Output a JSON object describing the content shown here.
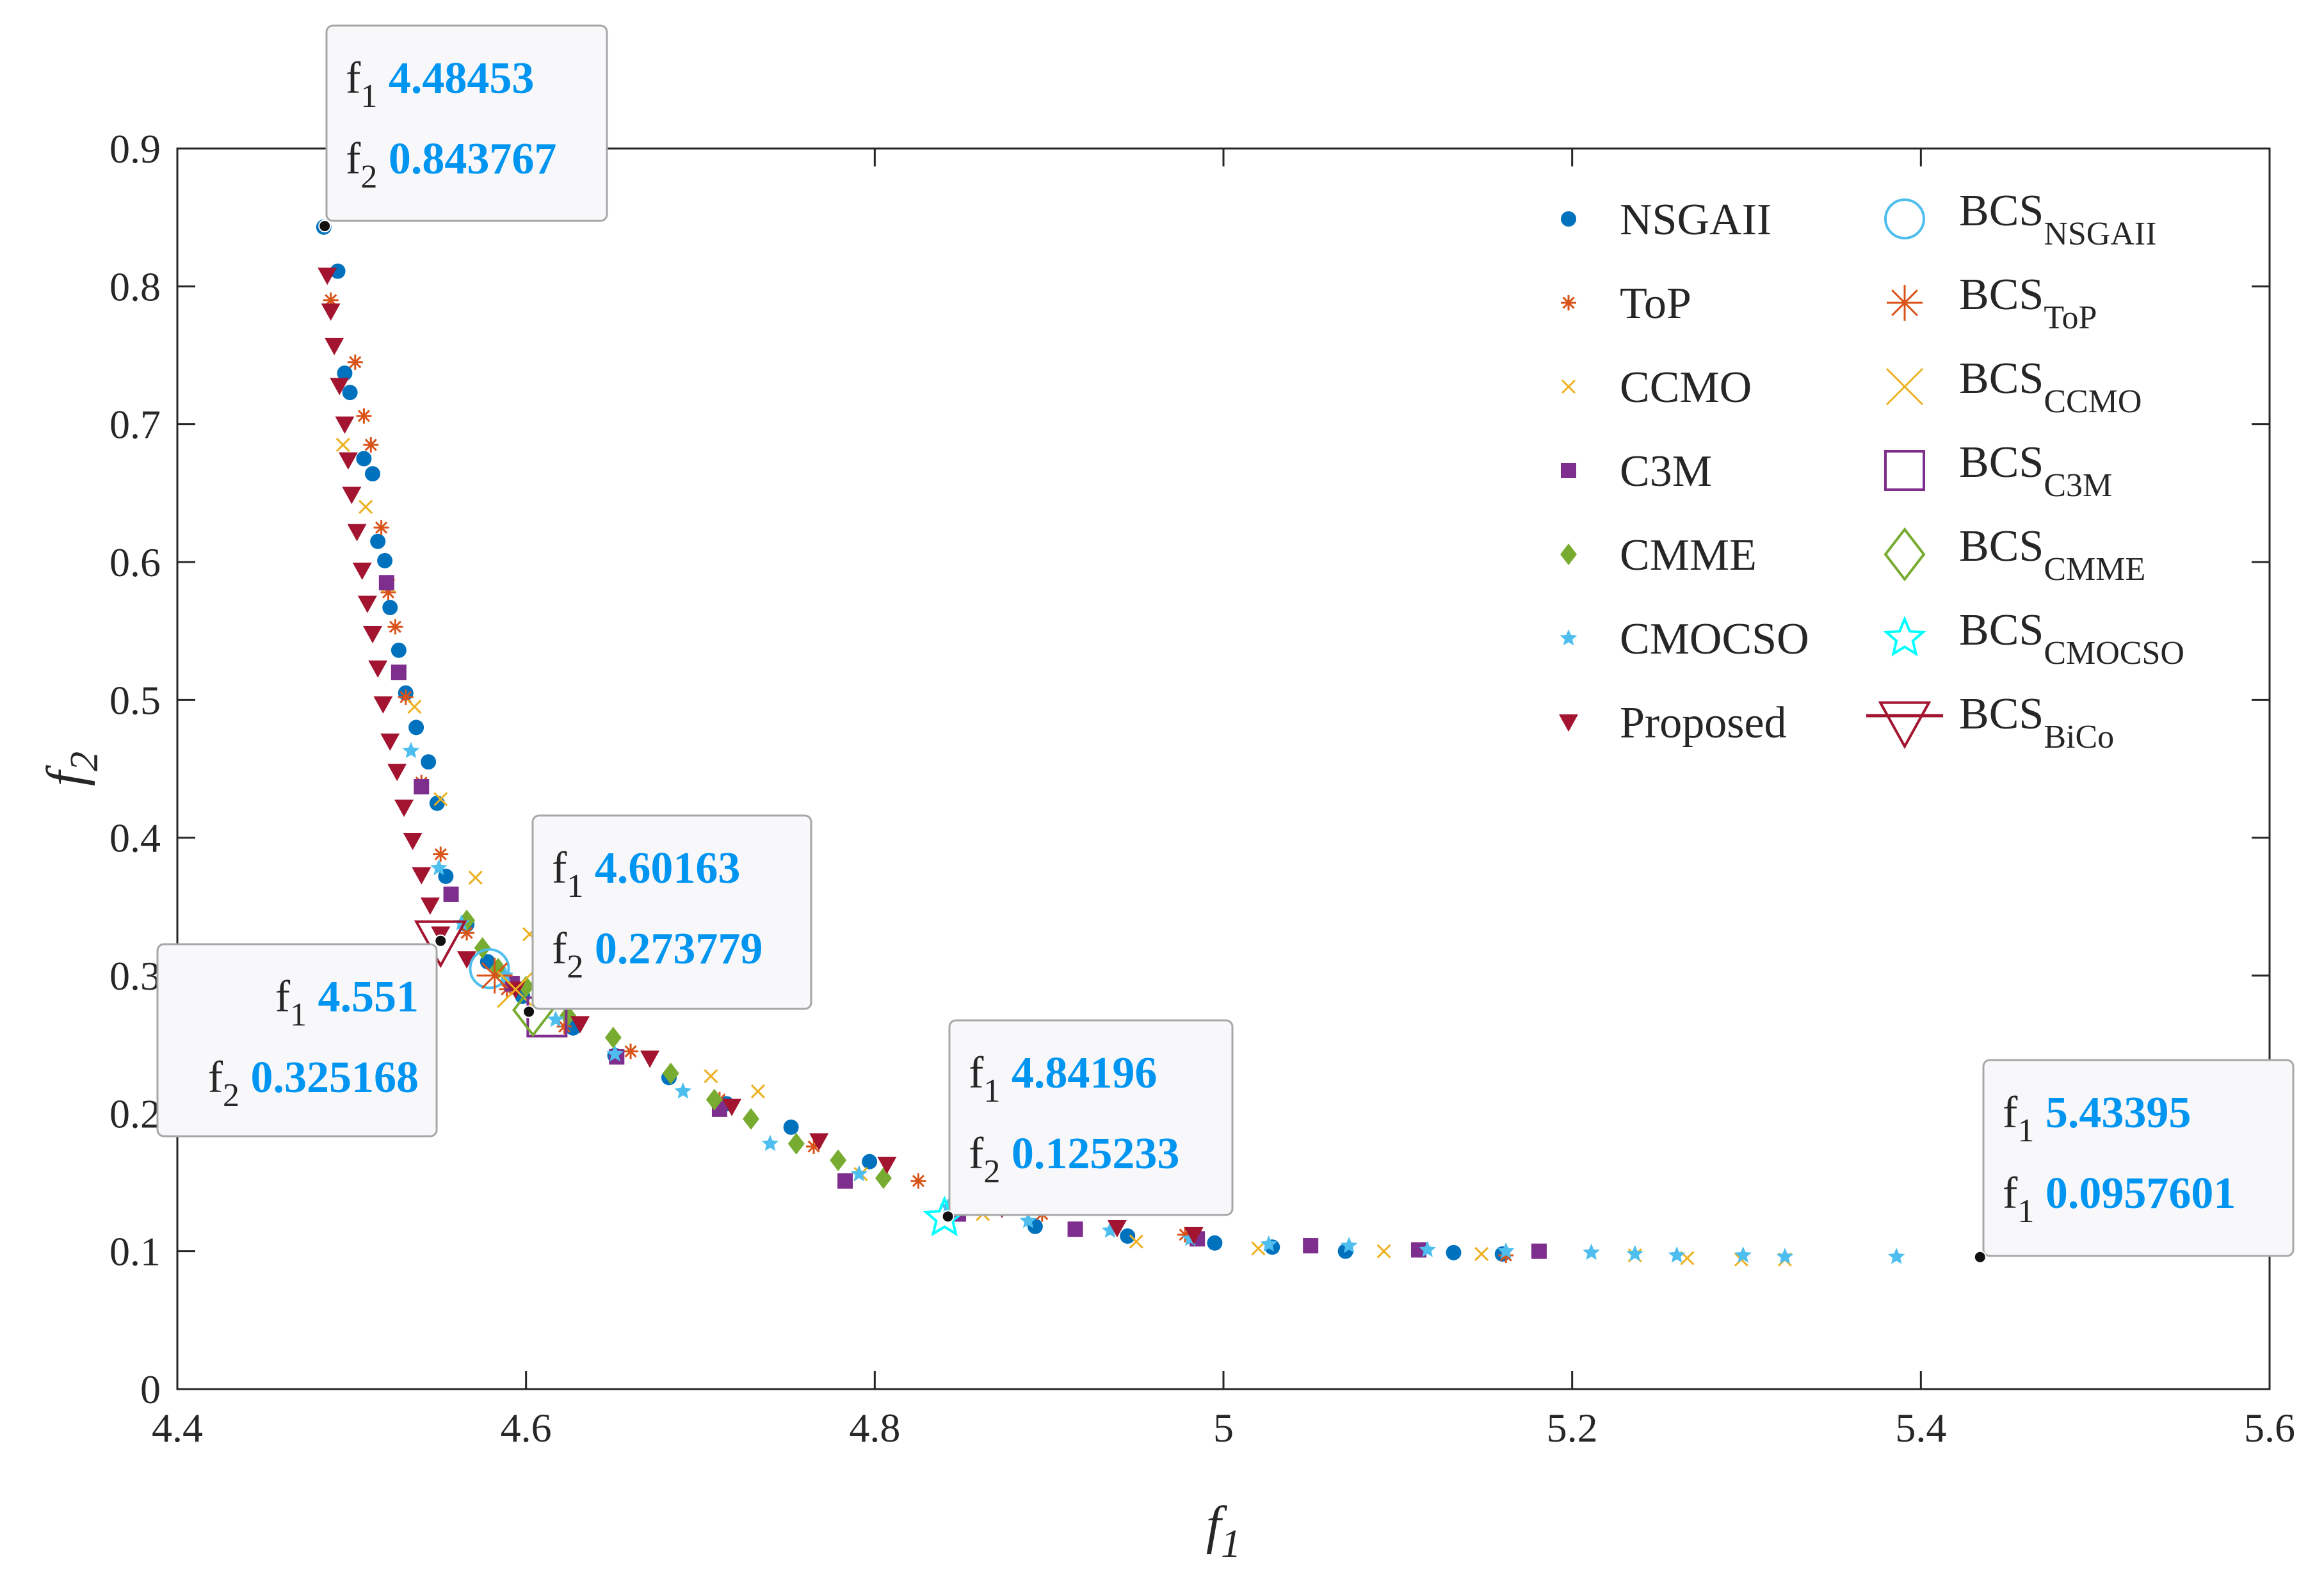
{
  "chart_data": {
    "type": "scatter",
    "title": "",
    "xlabel": "f",
    "xlabel_sub": "1",
    "ylabel": "f",
    "ylabel_sub": "2",
    "xlim": [
      4.4,
      5.6
    ],
    "ylim": [
      0,
      0.9
    ],
    "xticks": [
      4.4,
      4.6,
      4.8,
      5,
      5.2,
      5.4,
      5.6
    ],
    "xtick_labels": [
      "4.4",
      "4.6",
      "4.8",
      "5",
      "5.2",
      "5.4",
      "5.6"
    ],
    "yticks": [
      0,
      0.1,
      0.2,
      0.3,
      0.4,
      0.5,
      0.6,
      0.7,
      0.8,
      0.9
    ],
    "ytick_labels": [
      "0",
      "0.1",
      "0.2",
      "0.3",
      "0.4",
      "0.5",
      "0.6",
      "0.7",
      "0.8",
      "0.9"
    ],
    "grid": false,
    "legend_position": "top-right",
    "colors": {
      "NSGAII": "#0072BD",
      "ToP": "#D95319",
      "CCMO": "#EDB120",
      "C3M": "#7E2F8E",
      "CMME": "#77AC30",
      "CMOCSO": "#4DBEEE",
      "Proposed": "#A2142F",
      "BCS_NSGAII": "#4DBEEE",
      "BCS_CMOCSO": "#00FFFF",
      "datatip_value": "#0095F0"
    },
    "series": [
      {
        "name": "NSGAII",
        "marker": "circle",
        "x": [
          4.484,
          4.492,
          4.496,
          4.499,
          4.507,
          4.512,
          4.515,
          4.519,
          4.522,
          4.527,
          4.531,
          4.537,
          4.544,
          4.549,
          4.554,
          4.566,
          4.578,
          4.598,
          4.627,
          4.651,
          4.682,
          4.715,
          4.752,
          4.797,
          4.846,
          4.892,
          4.945,
          4.995,
          5.028,
          5.07,
          5.132,
          5.16
        ],
        "y": [
          0.843,
          0.811,
          0.737,
          0.723,
          0.675,
          0.664,
          0.615,
          0.601,
          0.567,
          0.536,
          0.505,
          0.48,
          0.455,
          0.425,
          0.372,
          0.337,
          0.31,
          0.285,
          0.262,
          0.242,
          0.226,
          0.207,
          0.19,
          0.165,
          0.132,
          0.118,
          0.111,
          0.106,
          0.103,
          0.1,
          0.099,
          0.098
        ]
      },
      {
        "name": "ToP",
        "marker": "asterisk",
        "x": [
          4.488,
          4.502,
          4.507,
          4.511,
          4.517,
          4.521,
          4.525,
          4.531,
          4.54,
          4.551,
          4.566,
          4.589,
          4.622,
          4.66,
          4.711,
          4.765,
          4.825,
          4.896,
          4.978,
          5.162
        ],
        "y": [
          0.79,
          0.745,
          0.706,
          0.685,
          0.625,
          0.578,
          0.553,
          0.502,
          0.44,
          0.388,
          0.331,
          0.29,
          0.263,
          0.245,
          0.21,
          0.176,
          0.151,
          0.127,
          0.112,
          0.097
        ]
      },
      {
        "name": "CCMO",
        "marker": "x",
        "x": [
          4.495,
          4.508,
          4.521,
          4.536,
          4.551,
          4.571,
          4.602,
          4.645,
          4.706,
          4.733,
          4.792,
          4.862,
          4.95,
          5.02,
          5.092,
          5.148,
          5.236,
          5.266,
          5.297,
          5.322
        ],
        "y": [
          0.685,
          0.64,
          0.583,
          0.495,
          0.428,
          0.371,
          0.33,
          0.282,
          0.227,
          0.216,
          0.156,
          0.127,
          0.107,
          0.102,
          0.1,
          0.098,
          0.097,
          0.095,
          0.094,
          0.094
        ]
      },
      {
        "name": "C3M",
        "marker": "square",
        "x": [
          4.52,
          4.527,
          4.54,
          4.557,
          4.592,
          4.652,
          4.711,
          4.783,
          4.848,
          4.915,
          4.985,
          5.05,
          5.112,
          5.181
        ],
        "y": [
          0.585,
          0.52,
          0.437,
          0.359,
          0.294,
          0.241,
          0.203,
          0.151,
          0.127,
          0.116,
          0.109,
          0.104,
          0.101,
          0.1
        ]
      },
      {
        "name": "CMME",
        "marker": "diamond",
        "x": [
          4.566,
          4.575,
          4.584,
          4.6,
          4.624,
          4.65,
          4.683,
          4.708,
          4.729,
          4.755,
          4.779,
          4.805
        ],
        "y": [
          0.34,
          0.32,
          0.305,
          0.292,
          0.271,
          0.255,
          0.229,
          0.21,
          0.196,
          0.178,
          0.166,
          0.153
        ]
      },
      {
        "name": "CMOCSO",
        "marker": "star",
        "x": [
          4.534,
          4.55,
          4.563,
          4.588,
          4.617,
          4.651,
          4.69,
          4.74,
          4.791,
          4.842,
          4.888,
          4.935,
          4.981,
          5.026,
          5.072,
          5.117,
          5.162,
          5.211,
          5.236,
          5.26,
          5.298,
          5.322,
          5.386
        ],
        "y": [
          0.463,
          0.378,
          0.338,
          0.3,
          0.268,
          0.243,
          0.216,
          0.178,
          0.156,
          0.132,
          0.122,
          0.115,
          0.109,
          0.105,
          0.104,
          0.101,
          0.1,
          0.099,
          0.098,
          0.097,
          0.097,
          0.096,
          0.096
        ]
      },
      {
        "name": "Proposed",
        "marker": "triangle-down",
        "x": [
          4.486,
          4.488,
          4.49,
          4.493,
          4.496,
          4.498,
          4.5,
          4.503,
          4.506,
          4.509,
          4.512,
          4.515,
          4.518,
          4.522,
          4.526,
          4.53,
          4.535,
          4.54,
          4.545,
          4.551,
          4.566,
          4.594,
          4.631,
          4.671,
          4.718,
          4.768,
          4.807,
          4.873,
          4.939,
          4.983
        ],
        "y": [
          0.808,
          0.782,
          0.757,
          0.728,
          0.7,
          0.674,
          0.649,
          0.622,
          0.594,
          0.57,
          0.548,
          0.523,
          0.497,
          0.47,
          0.448,
          0.422,
          0.398,
          0.373,
          0.351,
          0.33,
          0.312,
          0.29,
          0.265,
          0.24,
          0.205,
          0.18,
          0.163,
          0.131,
          0.117,
          0.112
        ]
      }
    ],
    "bcs_points": [
      {
        "name": "BCS",
        "sub": "NSGAII",
        "marker": "circle-open",
        "x": 4.579,
        "y": 0.305
      },
      {
        "name": "BCS",
        "sub": "ToP",
        "marker": "asterisk",
        "x": 4.582,
        "y": 0.3
      },
      {
        "name": "BCS",
        "sub": "CCMO",
        "marker": "x",
        "x": 4.594,
        "y": 0.29
      },
      {
        "name": "BCS",
        "sub": "C3M",
        "marker": "square-open",
        "x": 4.612,
        "y": 0.27
      },
      {
        "name": "BCS",
        "sub": "CMME",
        "marker": "diamond-open",
        "x": 4.604,
        "y": 0.275
      },
      {
        "name": "BCS",
        "sub": "CMOCSO",
        "marker": "star-open",
        "x": 4.84,
        "y": 0.124
      },
      {
        "name": "BCS",
        "sub": "BiCo",
        "marker": "triangle-down-open",
        "x": 4.551,
        "y": 0.325
      }
    ],
    "legend": [
      {
        "label": "NSGAII",
        "marker": "circle"
      },
      {
        "label": "ToP",
        "marker": "asterisk"
      },
      {
        "label": "CCMO",
        "marker": "x"
      },
      {
        "label": "C3M",
        "marker": "square"
      },
      {
        "label": "CMME",
        "marker": "diamond"
      },
      {
        "label": "CMOCSO",
        "marker": "star"
      },
      {
        "label": "Proposed",
        "marker": "triangle-down"
      }
    ],
    "legend_bcs": [
      {
        "label": "BCS",
        "sub": "NSGAII"
      },
      {
        "label": "BCS",
        "sub": "ToP"
      },
      {
        "label": "BCS",
        "sub": "CCMO"
      },
      {
        "label": "BCS",
        "sub": "C3M"
      },
      {
        "label": "BCS",
        "sub": "CMME"
      },
      {
        "label": "BCS",
        "sub": "CMOCSO"
      },
      {
        "label": "BCS",
        "sub": "BiCo"
      }
    ],
    "datatips": [
      {
        "point_x": 4.48453,
        "point_y": 0.843767,
        "rows": [
          {
            "key": "f",
            "sub": "1",
            "value": "4.48453"
          },
          {
            "key": "f",
            "sub": "2",
            "value": "0.843767"
          }
        ]
      },
      {
        "point_x": 4.60163,
        "point_y": 0.273779,
        "rows": [
          {
            "key": "f",
            "sub": "1",
            "value": "4.60163"
          },
          {
            "key": "f",
            "sub": "2",
            "value": "0.273779"
          }
        ]
      },
      {
        "point_x": 4.551,
        "point_y": 0.325168,
        "rows": [
          {
            "key": "f",
            "sub": "1",
            "value": "4.551"
          },
          {
            "key": "f",
            "sub": "2",
            "value": "0.325168"
          }
        ]
      },
      {
        "point_x": 4.84196,
        "point_y": 0.125233,
        "rows": [
          {
            "key": "f",
            "sub": "1",
            "value": "4.84196"
          },
          {
            "key": "f",
            "sub": "2",
            "value": "0.125233"
          }
        ]
      },
      {
        "point_x": 5.43395,
        "point_y": 0.0957601,
        "rows": [
          {
            "key": "f",
            "sub": "1",
            "value": "5.43395"
          },
          {
            "key": "f",
            "sub": "1",
            "value": "0.0957601"
          }
        ]
      }
    ]
  }
}
